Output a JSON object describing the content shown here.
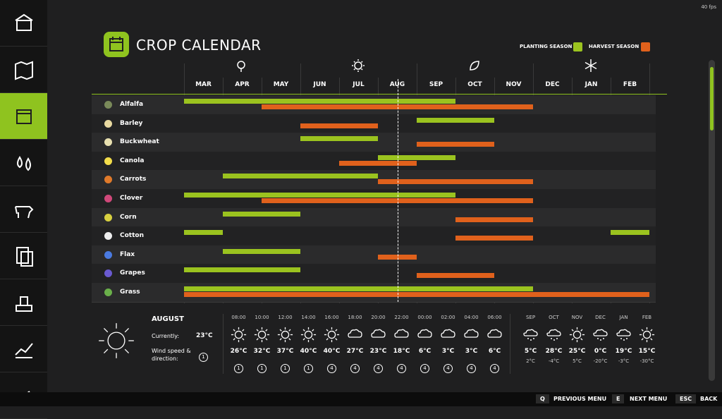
{
  "fps": "40 fps",
  "header": {
    "title": "CROP CALENDAR"
  },
  "legend": {
    "planting": "PLANTING SEASON",
    "harvest": "HARVEST SEASON"
  },
  "calendar": {
    "months": [
      "MAR",
      "APR",
      "MAY",
      "JUN",
      "JUL",
      "AUG",
      "SEP",
      "OCT",
      "NOV",
      "DEC",
      "JAN",
      "FEB"
    ],
    "current_month": "AUG",
    "crops": [
      {
        "name": "Alfalfa",
        "planting": [
          [
            "MAR",
            "SEP"
          ]
        ],
        "harvest": [
          [
            "MAY",
            "NOV"
          ]
        ]
      },
      {
        "name": "Barley",
        "planting": [
          [
            "SEP",
            "OCT"
          ]
        ],
        "harvest": [
          [
            "JUN",
            "JUL"
          ]
        ]
      },
      {
        "name": "Buckwheat",
        "planting": [
          [
            "JUN",
            "JUL"
          ]
        ],
        "harvest": [
          [
            "SEP",
            "OCT"
          ]
        ]
      },
      {
        "name": "Canola",
        "planting": [
          [
            "AUG",
            "SEP"
          ]
        ],
        "harvest": [
          [
            "JUL",
            "AUG"
          ]
        ]
      },
      {
        "name": "Carrots",
        "planting": [
          [
            "APR",
            "JUL"
          ]
        ],
        "harvest": [
          [
            "AUG",
            "NOV"
          ]
        ]
      },
      {
        "name": "Clover",
        "planting": [
          [
            "MAR",
            "SEP"
          ]
        ],
        "harvest": [
          [
            "MAY",
            "NOV"
          ]
        ]
      },
      {
        "name": "Corn",
        "planting": [
          [
            "APR",
            "MAY"
          ]
        ],
        "harvest": [
          [
            "OCT",
            "NOV"
          ]
        ]
      },
      {
        "name": "Cotton",
        "planting": [
          [
            "MAR",
            "MAR"
          ],
          [
            "FEB",
            "FEB"
          ]
        ],
        "harvest": [
          [
            "OCT",
            "NOV"
          ]
        ]
      },
      {
        "name": "Flax",
        "planting": [
          [
            "APR",
            "MAY"
          ]
        ],
        "harvest": [
          [
            "AUG",
            "AUG"
          ]
        ]
      },
      {
        "name": "Grapes",
        "planting": [
          [
            "MAR",
            "MAY"
          ]
        ],
        "harvest": [
          [
            "SEP",
            "OCT"
          ]
        ]
      },
      {
        "name": "Grass",
        "planting": [
          [
            "MAR",
            "NOV"
          ]
        ],
        "harvest": [
          [
            "MAR",
            "FEB"
          ]
        ]
      }
    ]
  },
  "weather": {
    "month": "AUGUST",
    "currently_label": "Currently:",
    "current_temp": "23°C",
    "wind_label": "Wind speed & direction:",
    "wind": "1",
    "hourly": [
      {
        "time": "08:00",
        "sky": "sun",
        "temp": "26°C",
        "wind": "1"
      },
      {
        "time": "10:00",
        "sky": "sun",
        "temp": "32°C",
        "wind": "1"
      },
      {
        "time": "12:00",
        "sky": "sun",
        "temp": "37°C",
        "wind": "1"
      },
      {
        "time": "14:00",
        "sky": "sun",
        "temp": "40°C",
        "wind": "1"
      },
      {
        "time": "16:00",
        "sky": "sun",
        "temp": "40°C",
        "wind": "4"
      },
      {
        "time": "18:00",
        "sky": "cloud",
        "temp": "27°C",
        "wind": "4"
      },
      {
        "time": "20:00",
        "sky": "cloud",
        "temp": "23°C",
        "wind": "4"
      },
      {
        "time": "22:00",
        "sky": "cloud",
        "temp": "18°C",
        "wind": "4"
      },
      {
        "time": "00:00",
        "sky": "cloud",
        "temp": "6°C",
        "wind": "4"
      },
      {
        "time": "02:00",
        "sky": "cloud",
        "temp": "3°C",
        "wind": "4"
      },
      {
        "time": "04:00",
        "sky": "cloud",
        "temp": "3°C",
        "wind": "4"
      },
      {
        "time": "06:00",
        "sky": "cloud",
        "temp": "6°C",
        "wind": "4"
      }
    ],
    "monthly": [
      {
        "month": "SEP",
        "sky": "snow",
        "high": "5°C",
        "low": "2°C"
      },
      {
        "month": "OCT",
        "sky": "snow",
        "high": "28°C",
        "low": "-4°C"
      },
      {
        "month": "NOV",
        "sky": "sun",
        "high": "25°C",
        "low": "5°C"
      },
      {
        "month": "DEC",
        "sky": "snow",
        "high": "0°C",
        "low": "-20°C"
      },
      {
        "month": "JAN",
        "sky": "snow",
        "high": "19°C",
        "low": "-3°C"
      },
      {
        "month": "FEB",
        "sky": "sun",
        "high": "15°C",
        "low": "-30°C"
      }
    ]
  },
  "controls": [
    {
      "key": "Q",
      "label": "PREVIOUS MENU"
    },
    {
      "key": "E",
      "label": "NEXT MENU"
    },
    {
      "key": "ESC",
      "label": "BACK"
    }
  ]
}
